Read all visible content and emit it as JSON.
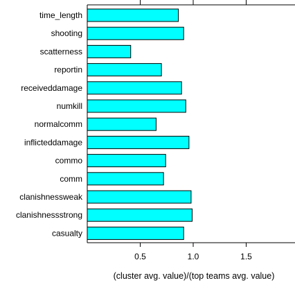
{
  "chart_data": {
    "type": "bar",
    "orientation": "horizontal",
    "categories": [
      "time_length",
      "shooting",
      "scatterness",
      "reportin",
      "receiveddamage",
      "numkill",
      "normalcomm",
      "inflicteddamage",
      "commo",
      "comm",
      "clanishnessweak",
      "clanishnessstrong",
      "casualty"
    ],
    "values": [
      0.86,
      0.91,
      0.41,
      0.7,
      0.89,
      0.93,
      0.65,
      0.96,
      0.74,
      0.72,
      0.98,
      0.99,
      0.91
    ],
    "xlabel": "(cluster avg. value)/(top teams avg. value)",
    "ylabel": "",
    "xlim": [
      0,
      1.97
    ],
    "xticks": [
      0.5,
      1.0,
      1.5
    ],
    "xtick_labels": [
      "0.5",
      "1.0",
      "1.5"
    ],
    "grid": false,
    "legend": "none",
    "colors": {
      "bar": "#00ffff",
      "edge": "#000000",
      "axis": "#000000"
    }
  }
}
